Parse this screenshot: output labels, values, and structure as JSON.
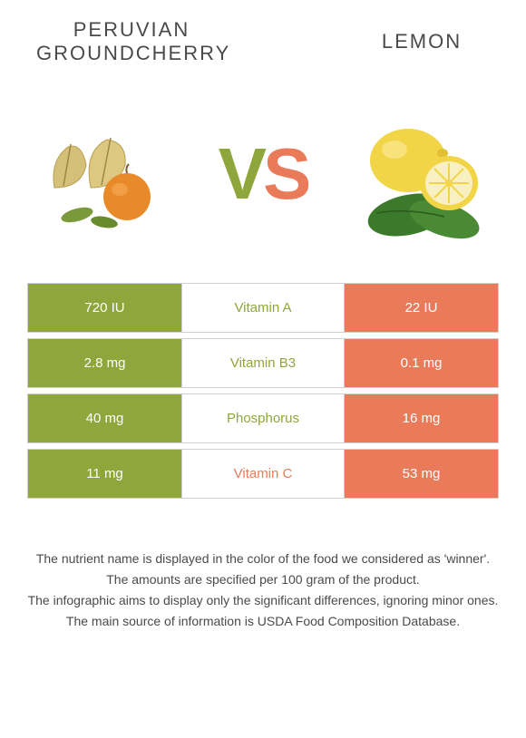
{
  "colors": {
    "green": "#8fa63c",
    "orange": "#e97b5a",
    "text": "#4a4a4a",
    "border": "#d0d0d0",
    "white": "#ffffff"
  },
  "leftFood": {
    "name": "Peruvian groundcherry",
    "color": "#8fa63c"
  },
  "rightFood": {
    "name": "Lemon",
    "color": "#e97b5a"
  },
  "vs": {
    "v": "V",
    "s": "S"
  },
  "nutrients": [
    {
      "name": "Vitamin A",
      "left": "720 IU",
      "right": "22 IU",
      "winner": "left"
    },
    {
      "name": "Vitamin B3",
      "left": "2.8 mg",
      "right": "0.1 mg",
      "winner": "left"
    },
    {
      "name": "Phosphorus",
      "left": "40 mg",
      "right": "16 mg",
      "winner": "left"
    },
    {
      "name": "Vitamin C",
      "left": "11 mg",
      "right": "53 mg",
      "winner": "right"
    }
  ],
  "footnotes": [
    "The nutrient name is displayed in the color of the food we considered as 'winner'.",
    "The amounts are specified per 100 gram of the product.",
    "The infographic aims to display only the significant differences, ignoring minor ones.",
    "The main source of information is USDA Food Composition Database."
  ]
}
